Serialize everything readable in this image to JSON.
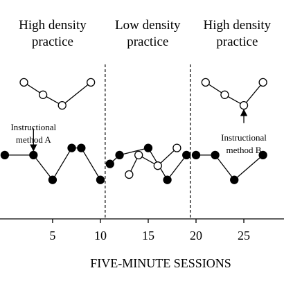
{
  "chart_data": {
    "type": "line",
    "xlabel": "FIVE-MINUTE SESSIONS",
    "ylabel": "",
    "xlim": [
      -0.5,
      29.2
    ],
    "ylim": [
      0,
      100
    ],
    "xticks": [
      5,
      10,
      15,
      20,
      25
    ],
    "grid": false,
    "legend": null,
    "phases": [
      {
        "label_lines": [
          "High density",
          "practice"
        ],
        "x_start": -0.5,
        "x_end": 10.5
      },
      {
        "label_lines": [
          "Low density",
          "practice"
        ],
        "x_start": 10.5,
        "x_end": 19.4
      },
      {
        "label_lines": [
          "High density",
          "practice"
        ],
        "x_start": 19.4,
        "x_end": 29.2
      }
    ],
    "phase_change_lines_x": [
      10.5,
      19.4
    ],
    "series": [
      {
        "marker": "open",
        "segments": [
          [
            [
              2,
              77
            ],
            [
              4,
              70
            ],
            [
              6,
              64
            ],
            [
              9,
              77
            ]
          ],
          [
            [
              13,
              25
            ],
            [
              14,
              36
            ],
            [
              16,
              30
            ],
            [
              18,
              40
            ]
          ],
          [
            [
              21,
              77
            ],
            [
              23,
              70
            ],
            [
              25,
              64
            ],
            [
              27,
              77
            ]
          ]
        ]
      },
      {
        "marker": "filled",
        "segments": [
          [
            [
              0,
              36
            ],
            [
              3,
              36
            ],
            [
              5,
              22
            ],
            [
              7,
              40
            ],
            [
              8,
              40
            ],
            [
              10,
              22
            ]
          ],
          [
            [
              11,
              31
            ],
            [
              12,
              36
            ],
            [
              15,
              40
            ],
            [
              17,
              22
            ],
            [
              19,
              36
            ]
          ],
          [
            [
              20,
              36
            ],
            [
              22,
              36
            ],
            [
              24,
              22
            ],
            [
              27,
              36
            ]
          ]
        ]
      }
    ],
    "annotations": [
      {
        "lines": [
          "Instructional",
          "method A"
        ],
        "arrow_x": 3,
        "arrow_from_y": 51,
        "arrow_to_y": 40
      },
      {
        "lines": [
          "Instructional",
          "method B"
        ],
        "arrow_x": 25,
        "arrow_from_y": 54,
        "arrow_to_y": 60
      }
    ]
  }
}
